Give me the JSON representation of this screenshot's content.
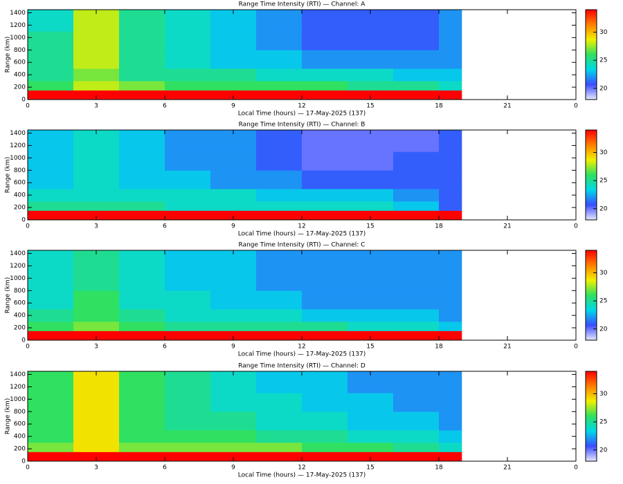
{
  "chart_data": [
    {
      "type": "heatmap",
      "title": "Range Time Intensity (RTI) — Channel: A",
      "xlabel": "Local Time (hours) — 17-May-2025 (137)",
      "ylabel": "Range (km)",
      "xlim": [
        0,
        24
      ],
      "xticks": [
        0,
        3,
        6,
        9,
        12,
        15,
        18,
        21,
        {
          "value": 24,
          "label": "0"
        }
      ],
      "ylim": [
        0,
        1450
      ],
      "yticks": [
        0,
        200,
        400,
        600,
        800,
        1000,
        1200,
        1400
      ],
      "xbins": [
        0,
        2,
        4,
        6,
        8,
        10,
        12,
        14,
        16,
        18,
        19
      ],
      "ybins": [
        0,
        150,
        300,
        500,
        800,
        1100,
        1450
      ],
      "values": [
        [
          34,
          34,
          34,
          34,
          34,
          34,
          34,
          34,
          34,
          34
        ],
        [
          26,
          28,
          27,
          26,
          26,
          26,
          26,
          25,
          25,
          24
        ],
        [
          25,
          27,
          25,
          25,
          25,
          24,
          24,
          24,
          23,
          23
        ],
        [
          25,
          28,
          25,
          24,
          23,
          23,
          22,
          22,
          22,
          22
        ],
        [
          25,
          28,
          25,
          24,
          23,
          22,
          21,
          21,
          21,
          22
        ],
        [
          24,
          28,
          25,
          24,
          23,
          22,
          21,
          21,
          21,
          22
        ]
      ],
      "zlim": [
        18,
        34
      ],
      "zticks": [
        20,
        25,
        30
      ],
      "colormap": [
        "#e8e8ff",
        "#3a4dff",
        "#00d8e8",
        "#30e060",
        "#f0f000",
        "#ff8000",
        "#ff0000"
      ]
    },
    {
      "type": "heatmap",
      "title": "Range Time Intensity (RTI) — Channel: B",
      "xlabel": "Local Time (hours) — 17-May-2025 (137)",
      "ylabel": "Range (km)",
      "xlim": [
        0,
        24
      ],
      "xticks": [
        0,
        3,
        6,
        9,
        12,
        15,
        18,
        21,
        {
          "value": 24,
          "label": "0"
        }
      ],
      "ylim": [
        0,
        1450
      ],
      "yticks": [
        0,
        200,
        400,
        600,
        800,
        1000,
        1200,
        1400
      ],
      "xbins": [
        0,
        2,
        4,
        6,
        8,
        10,
        12,
        14,
        16,
        18,
        19
      ],
      "ybins": [
        0,
        150,
        300,
        500,
        800,
        1100,
        1450
      ],
      "values": [
        [
          34,
          34,
          34,
          34,
          34,
          34,
          34,
          34,
          34,
          34
        ],
        [
          25,
          25,
          25,
          24,
          24,
          24,
          24,
          24,
          23,
          21
        ],
        [
          24,
          24,
          24,
          24,
          24,
          23,
          23,
          23,
          22,
          21
        ],
        [
          23,
          24,
          23,
          23,
          22,
          22,
          21,
          21,
          21,
          21
        ],
        [
          23,
          24,
          23,
          22,
          22,
          21,
          20,
          20,
          21,
          21
        ],
        [
          23,
          24,
          23,
          22,
          22,
          21,
          20,
          20,
          20,
          21
        ]
      ],
      "zlim": [
        18,
        34
      ],
      "zticks": [
        20,
        25,
        30
      ],
      "colormap": [
        "#e8e8ff",
        "#3a4dff",
        "#00d8e8",
        "#30e060",
        "#f0f000",
        "#ff8000",
        "#ff0000"
      ]
    },
    {
      "type": "heatmap",
      "title": "Range Time Intensity (RTI) — Channel: C",
      "xlabel": "Local Time (hours) — 17-May-2025 (137)",
      "ylabel": "Range (km)",
      "xlim": [
        0,
        24
      ],
      "xticks": [
        0,
        3,
        6,
        9,
        12,
        15,
        18,
        21,
        {
          "value": 24,
          "label": "0"
        }
      ],
      "ylim": [
        0,
        1450
      ],
      "yticks": [
        0,
        200,
        400,
        600,
        800,
        1000,
        1200,
        1400
      ],
      "xbins": [
        0,
        2,
        4,
        6,
        8,
        10,
        12,
        14,
        16,
        18,
        19
      ],
      "ybins": [
        0,
        150,
        300,
        500,
        800,
        1100,
        1450
      ],
      "values": [
        [
          34,
          34,
          34,
          34,
          34,
          34,
          34,
          34,
          34,
          34
        ],
        [
          26,
          27,
          26,
          25,
          25,
          25,
          25,
          24,
          24,
          23
        ],
        [
          25,
          26,
          25,
          24,
          24,
          24,
          23,
          23,
          23,
          22
        ],
        [
          24,
          26,
          24,
          24,
          23,
          23,
          22,
          22,
          22,
          22
        ],
        [
          24,
          25,
          24,
          23,
          23,
          22,
          22,
          22,
          22,
          22
        ],
        [
          24,
          25,
          24,
          23,
          23,
          22,
          22,
          22,
          22,
          22
        ]
      ],
      "zlim": [
        18,
        34
      ],
      "zticks": [
        20,
        25,
        30
      ],
      "colormap": [
        "#e8e8ff",
        "#3a4dff",
        "#00d8e8",
        "#30e060",
        "#f0f000",
        "#ff8000",
        "#ff0000"
      ]
    },
    {
      "type": "heatmap",
      "title": "Range Time Intensity (RTI) — Channel: D",
      "xlabel": "Local Time (hours) — 17-May-2025 (137)",
      "ylabel": "Range (km)",
      "xlim": [
        0,
        24
      ],
      "xticks": [
        0,
        3,
        6,
        9,
        12,
        15,
        18,
        21,
        {
          "value": 24,
          "label": "0"
        }
      ],
      "ylim": [
        0,
        1450
      ],
      "yticks": [
        0,
        200,
        400,
        600,
        800,
        1000,
        1200,
        1400
      ],
      "xbins": [
        0,
        2,
        4,
        6,
        8,
        10,
        12,
        14,
        16,
        18,
        19
      ],
      "ybins": [
        0,
        150,
        300,
        500,
        800,
        1100,
        1450
      ],
      "values": [
        [
          34,
          34,
          34,
          34,
          34,
          34,
          34,
          34,
          34,
          34
        ],
        [
          27,
          29,
          27,
          27,
          27,
          27,
          26,
          26,
          25,
          24
        ],
        [
          26,
          29,
          26,
          26,
          26,
          25,
          25,
          24,
          24,
          23
        ],
        [
          26,
          29,
          26,
          25,
          25,
          24,
          24,
          23,
          23,
          22
        ],
        [
          26,
          29,
          26,
          25,
          24,
          24,
          23,
          23,
          22,
          22
        ],
        [
          26,
          29,
          26,
          25,
          24,
          23,
          23,
          22,
          22,
          22
        ]
      ],
      "zlim": [
        18,
        34
      ],
      "zticks": [
        20,
        25,
        30
      ],
      "colormap": [
        "#e8e8ff",
        "#3a4dff",
        "#00d8e8",
        "#30e060",
        "#f0f000",
        "#ff8000",
        "#ff0000"
      ]
    }
  ]
}
